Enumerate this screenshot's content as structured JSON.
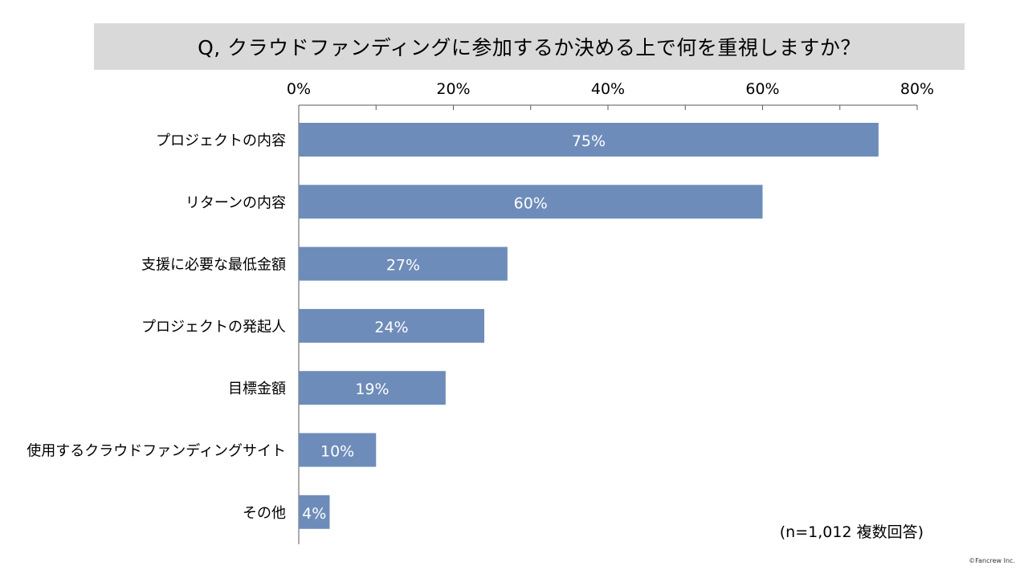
{
  "header": {
    "title": "Q, クラウドファンディングに参加するか決める上で何を重視しますか？"
  },
  "chart_data": {
    "type": "bar",
    "orientation": "horizontal",
    "title": "Q, クラウドファンディングに参加するか決める上で何を重視しますか？",
    "categories": [
      "プロジェクトの内容",
      "リターンの内容",
      "支援に必要な最低金額",
      "プロジェクトの発起人",
      "目標金額",
      "使用するクラウドファンディングサイト",
      "その他"
    ],
    "values": [
      75,
      60,
      27,
      24,
      19,
      10,
      4
    ],
    "value_labels": [
      "75%",
      "60%",
      "27%",
      "24%",
      "19%",
      "10%",
      "4%"
    ],
    "xlim": [
      0,
      80
    ],
    "x_ticks": [
      0,
      20,
      40,
      60,
      80
    ],
    "x_tick_labels": [
      "0%",
      "20%",
      "40%",
      "60%",
      "80%"
    ],
    "axis_position": "top",
    "grid": false,
    "bar_color": "#6e8cb9",
    "label_color": "#ffffff"
  },
  "footer": {
    "note": "(n=1,012 複数回答)",
    "credit": "©Fancrew Inc."
  },
  "colors": {
    "title_background": "#d9d9d9",
    "bar": "#6e8cb9",
    "axis": "#595959"
  }
}
